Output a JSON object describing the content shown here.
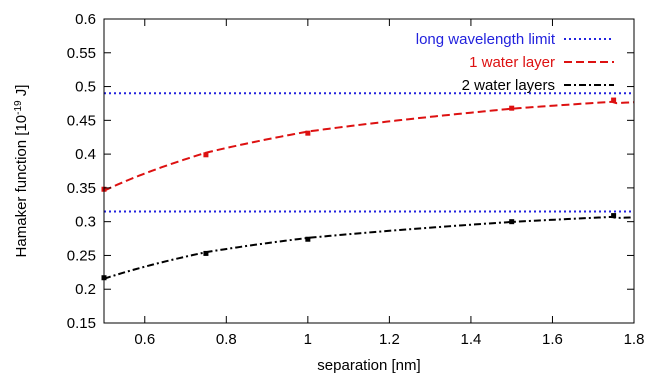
{
  "chart_data": {
    "type": "line",
    "xlabel": "separation [nm]",
    "ylabel": {
      "before": "Hamaker function [10",
      "exponent": "-19",
      "after": " J]"
    },
    "xlim": [
      0.5,
      1.8
    ],
    "ylim": [
      0.15,
      0.6
    ],
    "xticks": [
      0.6,
      0.8,
      1,
      1.2,
      1.4,
      1.6,
      1.8
    ],
    "xtick_labels": [
      "0.6",
      "0.8",
      "1",
      "1.2",
      "1.4",
      "1.6",
      "1.8"
    ],
    "yticks": [
      0.15,
      0.2,
      0.25,
      0.3,
      0.35,
      0.4,
      0.45,
      0.5,
      0.55,
      0.6
    ],
    "ytick_labels": [
      "0.15",
      "0.2",
      "0.25",
      "0.3",
      "0.35",
      "0.4",
      "0.45",
      "0.5",
      "0.55",
      "0.6"
    ],
    "grid": false,
    "legend_position": "top-right",
    "series": [
      {
        "name": "long wavelength limit",
        "color": "#2222dd",
        "style": "dotted",
        "markers": false,
        "lines": [
          {
            "x": [
              0.5,
              1.8
            ],
            "y": [
              0.49,
              0.49
            ]
          },
          {
            "x": [
              0.5,
              1.8
            ],
            "y": [
              0.315,
              0.315
            ]
          }
        ]
      },
      {
        "name": "1 water layer",
        "color": "#dd1111",
        "style": "dashed",
        "markers": true,
        "x": [
          0.5,
          0.75,
          1.0,
          1.5,
          1.75
        ],
        "y": [
          0.348,
          0.399,
          0.431,
          0.468,
          0.48
        ]
      },
      {
        "name": "2 water layers",
        "color": "#000000",
        "style": "dashdot",
        "markers": true,
        "x": [
          0.5,
          0.75,
          1.0,
          1.5,
          1.75
        ],
        "y": [
          0.217,
          0.253,
          0.274,
          0.3,
          0.309
        ]
      }
    ]
  }
}
